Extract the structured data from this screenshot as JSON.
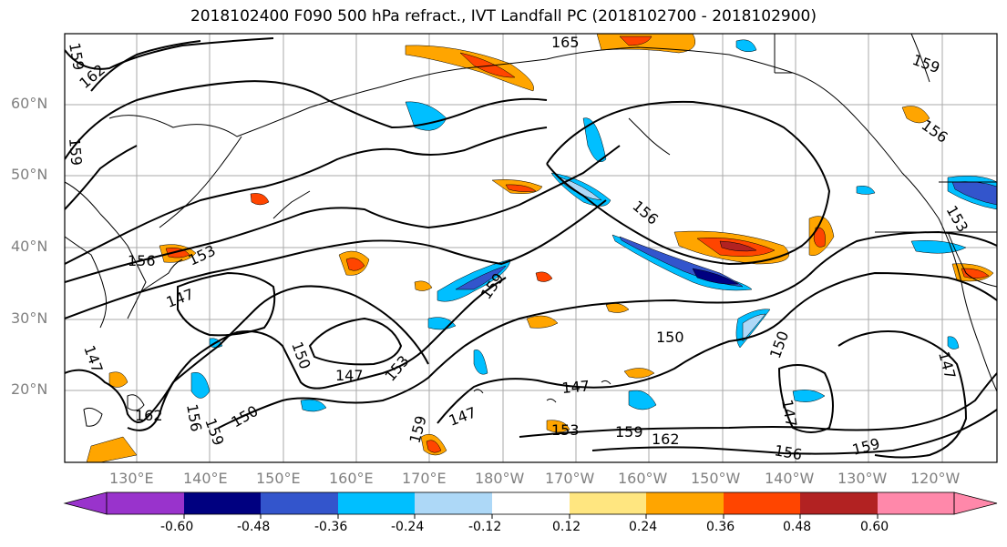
{
  "title": "2018102400 F090 500 hPa refract., IVT Landfall PC (2018102700 - 2018102900)",
  "lat_labels": [
    "60°N",
    "50°N",
    "40°N",
    "30°N",
    "20°N"
  ],
  "lon_labels": [
    "130°E",
    "140°E",
    "150°E",
    "160°E",
    "170°E",
    "180°W",
    "170°W",
    "160°W",
    "150°W",
    "140°W",
    "130°W",
    "120°W"
  ],
  "contour_labels": [
    "165",
    "162",
    "159",
    "159",
    "156",
    "153",
    "147",
    "156",
    "153",
    "162",
    "159",
    "156",
    "150",
    "150",
    "147",
    "153",
    "159",
    "147",
    "147",
    "153",
    "159",
    "162",
    "150",
    "150",
    "156",
    "159",
    "147",
    "147",
    "147",
    "156",
    "159",
    "159"
  ],
  "colorbar": {
    "ticks": [
      "-0.60",
      "-0.48",
      "-0.36",
      "-0.24",
      "-0.12",
      "0.12",
      "0.24",
      "0.36",
      "0.48",
      "0.60"
    ],
    "colors": [
      "#9933cc",
      "#000080",
      "#3355cc",
      "#00bfff",
      "#add8f7",
      "#ffffff",
      "#ffe680",
      "#ffa500",
      "#ff4500",
      "#b22222",
      "#ff88aa"
    ]
  },
  "colors": {
    "coast": "#000000",
    "grid": "#aaaaaa",
    "contour": "#000000",
    "axis_label": "#808080"
  }
}
